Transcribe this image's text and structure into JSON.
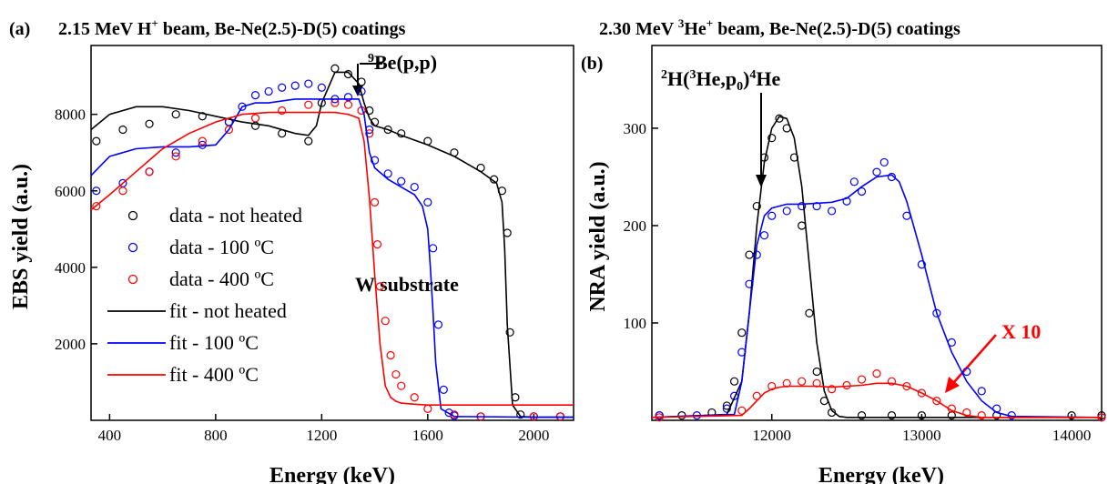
{
  "chart_data": [
    {
      "panel": "(a)",
      "type": "line",
      "title": "2.15 MeV H+ beam, Be-Ne(2.5)-D(5) coatings",
      "title_parts": {
        "pre": "2.15 MeV H",
        "sup": "+",
        "post": " beam, Be-Ne(2.5)-D(5) coatings"
      },
      "xlabel": "Energy (keV)",
      "ylabel": "EBS yield (a.u.)",
      "xlim": [
        330,
        2150
      ],
      "ylim": [
        0,
        9800
      ],
      "xticks": [
        400,
        800,
        1200,
        1600,
        2000
      ],
      "yticks": [
        2000,
        4000,
        6000,
        8000
      ],
      "legend_position": "center-left",
      "annotations": {
        "be_pp": {
          "pre": "",
          "sup": "9",
          "post": "Be(p,p)",
          "x": 1400,
          "y": 8800
        },
        "w_substrate": {
          "text": "W substrate",
          "x": 1700,
          "y": 3900
        }
      },
      "series": [
        {
          "name": "data - not heated",
          "kind": "data",
          "color": "#000000",
          "x": [
            350,
            450,
            550,
            650,
            750,
            850,
            950,
            1050,
            1150,
            1200,
            1250,
            1300,
            1350,
            1380,
            1400,
            1450,
            1500,
            1600,
            1700,
            1800,
            1850,
            1880,
            1900,
            1910,
            1930,
            1950,
            2000,
            2100
          ],
          "y": [
            7300,
            7600,
            7750,
            8000,
            7950,
            7800,
            7700,
            7500,
            7300,
            8300,
            9200,
            9050,
            8850,
            8100,
            7800,
            7600,
            7500,
            7300,
            7000,
            6600,
            6300,
            6000,
            4900,
            2300,
            600,
            150,
            100,
            100
          ]
        },
        {
          "name": "data - 100 ºC",
          "kind": "data",
          "color": "#0000ff",
          "x": [
            350,
            450,
            550,
            650,
            750,
            850,
            900,
            950,
            1000,
            1050,
            1100,
            1150,
            1200,
            1250,
            1300,
            1350,
            1380,
            1400,
            1450,
            1500,
            1550,
            1600,
            1620,
            1640,
            1660,
            1680,
            1700,
            1800,
            2000,
            2100
          ],
          "y": [
            6000,
            6200,
            6500,
            7000,
            7200,
            7800,
            8200,
            8500,
            8600,
            8700,
            8750,
            8800,
            8700,
            8400,
            8450,
            8600,
            7600,
            6800,
            6450,
            6250,
            6100,
            5700,
            4500,
            2500,
            800,
            200,
            120,
            100,
            100,
            100
          ]
        },
        {
          "name": "data - 400 ºC",
          "kind": "data",
          "color": "#ff0000",
          "x": [
            350,
            450,
            550,
            650,
            750,
            850,
            950,
            1050,
            1150,
            1250,
            1300,
            1350,
            1380,
            1400,
            1410,
            1420,
            1440,
            1460,
            1480,
            1500,
            1550,
            1600,
            1700,
            1800,
            2000,
            2100
          ],
          "y": [
            5600,
            6000,
            6500,
            6900,
            7300,
            7600,
            7900,
            8100,
            8250,
            8300,
            8250,
            8100,
            7500,
            5700,
            4600,
            3500,
            2600,
            1700,
            1200,
            900,
            600,
            300,
            150,
            100,
            100,
            100
          ]
        },
        {
          "name": "fit - not heated",
          "kind": "fit",
          "color": "#000000",
          "x": [
            330,
            400,
            500,
            600,
            700,
            800,
            900,
            1000,
            1100,
            1150,
            1180,
            1200,
            1250,
            1300,
            1340,
            1360,
            1380,
            1400,
            1450,
            1500,
            1600,
            1700,
            1800,
            1860,
            1880,
            1890,
            1900,
            1920,
            1950,
            2000,
            2150
          ],
          "y": [
            7600,
            8000,
            8200,
            8200,
            8100,
            7950,
            7800,
            7700,
            7500,
            7450,
            7700,
            8300,
            9100,
            9100,
            8800,
            8300,
            7900,
            7700,
            7600,
            7450,
            7200,
            6900,
            6500,
            6200,
            5700,
            4500,
            2500,
            400,
            100,
            80,
            80
          ]
        },
        {
          "name": "fit - 100 ºC",
          "kind": "fit",
          "color": "#0000ff",
          "x": [
            330,
            400,
            500,
            600,
            700,
            800,
            850,
            900,
            950,
            1000,
            1100,
            1200,
            1250,
            1300,
            1340,
            1360,
            1380,
            1400,
            1450,
            1500,
            1550,
            1580,
            1600,
            1610,
            1620,
            1630,
            1650,
            1700,
            2000,
            2150
          ],
          "y": [
            6400,
            6900,
            7100,
            7150,
            7150,
            7200,
            7600,
            8200,
            8300,
            8300,
            8400,
            8400,
            8400,
            8400,
            8400,
            8000,
            7000,
            6600,
            6300,
            6100,
            5900,
            5600,
            5000,
            4000,
            2800,
            1500,
            300,
            100,
            80,
            80
          ]
        },
        {
          "name": "fit - 400 ºC",
          "kind": "fit",
          "color": "#ff0000",
          "x": [
            330,
            400,
            500,
            600,
            700,
            800,
            900,
            1000,
            1100,
            1200,
            1250,
            1300,
            1340,
            1360,
            1380,
            1400,
            1420,
            1440,
            1460,
            1480,
            1500,
            1550,
            1600,
            2150
          ],
          "y": [
            5500,
            5900,
            6500,
            7100,
            7500,
            7800,
            8000,
            8050,
            8050,
            8050,
            8050,
            8000,
            7900,
            7300,
            5800,
            3800,
            2000,
            900,
            600,
            500,
            450,
            420,
            400,
            400
          ]
        }
      ]
    },
    {
      "panel": "(b)",
      "type": "line",
      "title": "2.30 MeV 3He+ beam, Be-Ne(2.5)-D(5) coatings",
      "title_parts": {
        "pre": "2.30 MeV ",
        "sup1": "3",
        "mid": "He",
        "sup2": "+",
        "post": " beam, Be-Ne(2.5)-D(5) coatings"
      },
      "xlabel": "Energy (keV)",
      "ylabel": "NRA yield (a.u.)",
      "xlim": [
        11200,
        14200
      ],
      "ylim": [
        0,
        385
      ],
      "xticks": [
        12000,
        13000,
        14000
      ],
      "yticks": [
        100,
        200,
        300
      ],
      "annotations": {
        "reaction": {
          "text": "2H(3He,p0)4He",
          "x": 11900,
          "y": 290
        },
        "x10": {
          "text": "X 10",
          "x": 13500,
          "y": 90
        }
      },
      "series": [
        {
          "name": "data - not heated",
          "kind": "data",
          "color": "#000000",
          "x": [
            11250,
            11400,
            11600,
            11700,
            11750,
            11800,
            11850,
            11900,
            11950,
            12000,
            12050,
            12100,
            12150,
            12200,
            12250,
            12300,
            12350,
            12400,
            12600,
            12800,
            13000,
            13200,
            13500,
            14000,
            14200
          ],
          "y": [
            5,
            5,
            8,
            15,
            40,
            90,
            170,
            220,
            270,
            290,
            310,
            300,
            270,
            200,
            110,
            50,
            20,
            8,
            5,
            5,
            5,
            5,
            5,
            5,
            5
          ]
        },
        {
          "name": "data - 100 ºC",
          "kind": "data",
          "color": "#0000ff",
          "x": [
            11250,
            11500,
            11700,
            11750,
            11800,
            11850,
            11900,
            11950,
            12000,
            12100,
            12200,
            12300,
            12400,
            12500,
            12550,
            12600,
            12700,
            12750,
            12800,
            12900,
            13000,
            13100,
            13200,
            13300,
            13400,
            13500,
            13600,
            14200
          ],
          "y": [
            5,
            5,
            12,
            25,
            70,
            140,
            170,
            190,
            210,
            215,
            220,
            220,
            215,
            225,
            245,
            235,
            255,
            265,
            250,
            210,
            160,
            110,
            80,
            50,
            30,
            12,
            5,
            3
          ]
        },
        {
          "name": "data - 400 ºC",
          "kind": "data",
          "color": "#ff0000",
          "x": [
            11250,
            11800,
            11900,
            12000,
            12100,
            12200,
            12300,
            12400,
            12500,
            12600,
            12700,
            12800,
            12900,
            13000,
            13100,
            13200,
            13300,
            13400,
            14200
          ],
          "y": [
            3,
            10,
            25,
            35,
            38,
            40,
            38,
            32,
            36,
            42,
            48,
            40,
            35,
            28,
            20,
            12,
            8,
            5,
            3
          ]
        },
        {
          "name": "fit - not heated",
          "kind": "fit",
          "color": "#000000",
          "x": [
            11200,
            11700,
            11800,
            11850,
            11900,
            11950,
            12000,
            12050,
            12100,
            12150,
            12200,
            12250,
            12300,
            12350,
            12400,
            12450,
            12500,
            14200
          ],
          "y": [
            3,
            6,
            40,
            110,
            200,
            265,
            300,
            312,
            310,
            290,
            240,
            160,
            80,
            30,
            10,
            4,
            3,
            3
          ]
        },
        {
          "name": "fit - 100 ºC",
          "kind": "fit",
          "color": "#0000ff",
          "x": [
            11200,
            11750,
            11800,
            11850,
            11900,
            11950,
            12000,
            12100,
            12200,
            12300,
            12400,
            12500,
            12600,
            12700,
            12800,
            12850,
            12900,
            13000,
            13100,
            13200,
            13300,
            13400,
            13500,
            13600,
            14200
          ],
          "y": [
            3,
            6,
            40,
            110,
            180,
            210,
            218,
            222,
            222,
            223,
            224,
            228,
            240,
            250,
            252,
            245,
            225,
            170,
            110,
            70,
            40,
            20,
            8,
            4,
            3
          ]
        },
        {
          "name": "fit - 400 ºC",
          "kind": "fit",
          "color": "#ff0000",
          "x": [
            11200,
            11800,
            11850,
            11900,
            11950,
            12000,
            12050,
            12100,
            12200,
            12300,
            12400,
            12500,
            12600,
            12700,
            12800,
            12900,
            13000,
            13100,
            13200,
            13300,
            13400,
            14200
          ],
          "y": [
            3,
            5,
            12,
            20,
            28,
            32,
            34,
            35,
            35,
            35,
            34,
            35,
            36,
            38,
            38,
            35,
            28,
            20,
            10,
            5,
            3,
            3
          ]
        }
      ]
    }
  ]
}
